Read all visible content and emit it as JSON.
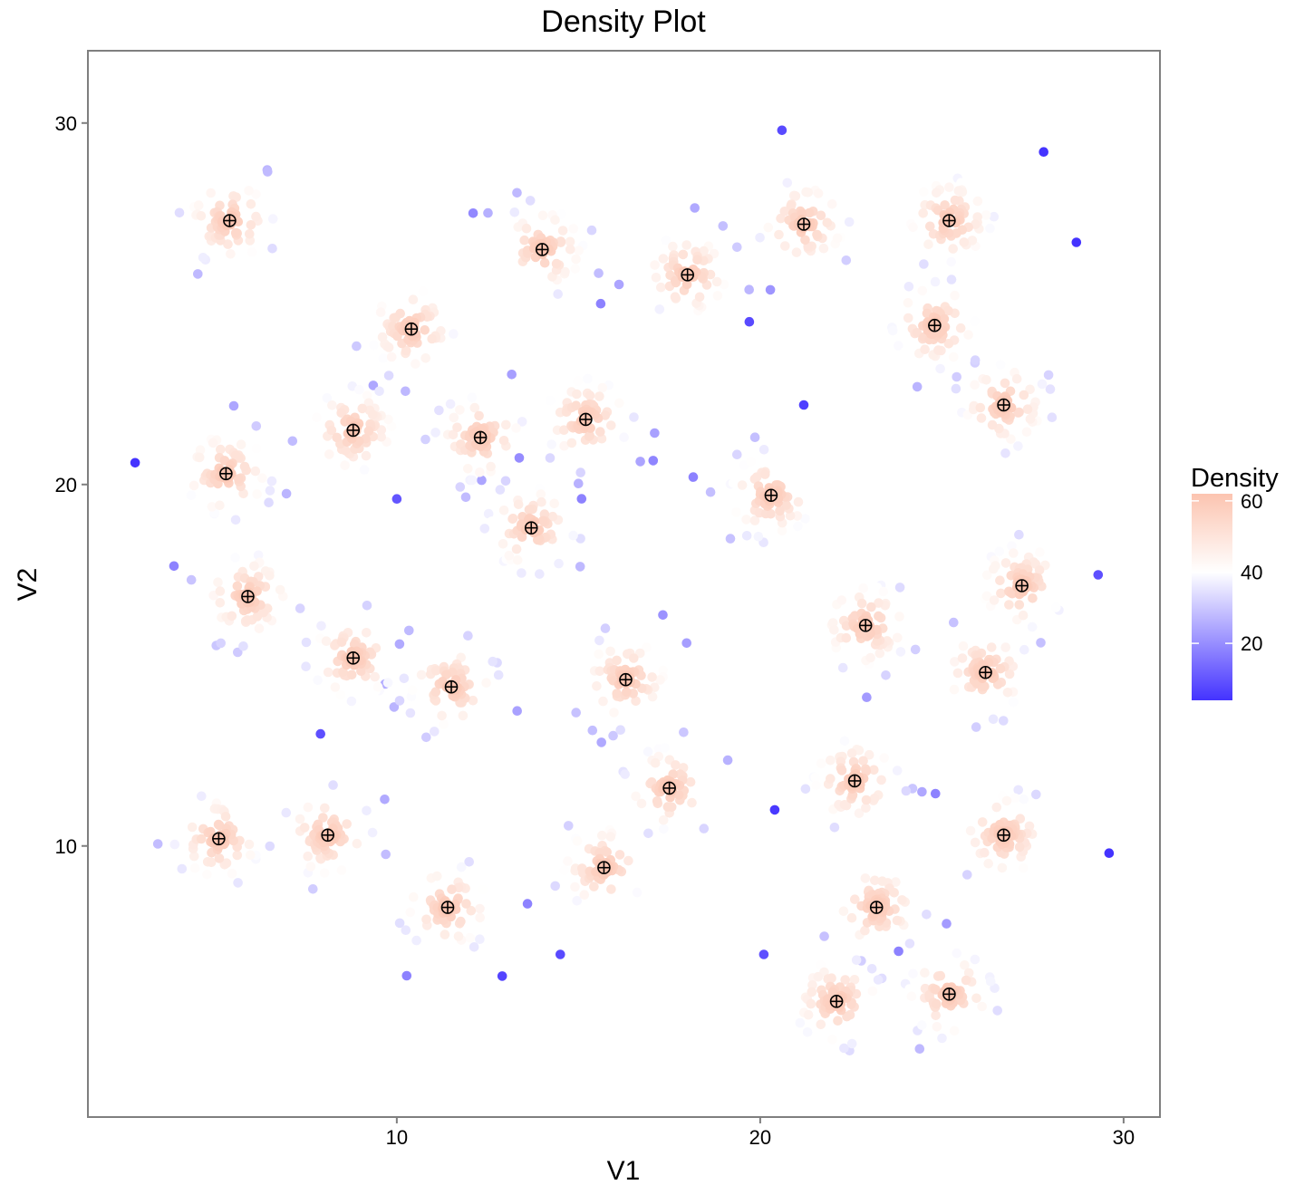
{
  "chart_data": {
    "type": "scatter",
    "title": "Density Plot",
    "xlabel": "V1",
    "ylabel": "V2",
    "xlim": [
      1.5,
      31.0
    ],
    "ylim": [
      2.5,
      32.0
    ],
    "x_ticks": [
      10,
      20,
      30
    ],
    "y_ticks": [
      10,
      20,
      30
    ],
    "grid": false,
    "legend": {
      "title": "Density",
      "position": "right",
      "ticks": [
        20,
        40,
        60
      ],
      "range": [
        4,
        62
      ],
      "colors": {
        "low": "#4433ff",
        "mid": "#ffffff",
        "high": "#fcc4b0"
      }
    },
    "centers_marker": "circled-plus",
    "cluster_centers": [
      {
        "x": 5.4,
        "y": 27.3
      },
      {
        "x": 14.0,
        "y": 26.5
      },
      {
        "x": 18.0,
        "y": 25.8
      },
      {
        "x": 21.2,
        "y": 27.2
      },
      {
        "x": 25.2,
        "y": 27.3
      },
      {
        "x": 10.4,
        "y": 24.3
      },
      {
        "x": 24.8,
        "y": 24.4
      },
      {
        "x": 8.8,
        "y": 21.5
      },
      {
        "x": 12.3,
        "y": 21.3
      },
      {
        "x": 15.2,
        "y": 21.8
      },
      {
        "x": 26.7,
        "y": 22.2
      },
      {
        "x": 5.3,
        "y": 20.3
      },
      {
        "x": 20.3,
        "y": 19.7
      },
      {
        "x": 13.7,
        "y": 18.8
      },
      {
        "x": 5.9,
        "y": 16.9
      },
      {
        "x": 27.2,
        "y": 17.2
      },
      {
        "x": 22.9,
        "y": 16.1
      },
      {
        "x": 8.8,
        "y": 15.2
      },
      {
        "x": 11.5,
        "y": 14.4
      },
      {
        "x": 16.3,
        "y": 14.6
      },
      {
        "x": 26.2,
        "y": 14.8
      },
      {
        "x": 17.5,
        "y": 11.6
      },
      {
        "x": 22.6,
        "y": 11.8
      },
      {
        "x": 5.1,
        "y": 10.2
      },
      {
        "x": 8.1,
        "y": 10.3
      },
      {
        "x": 26.7,
        "y": 10.3
      },
      {
        "x": 15.7,
        "y": 9.4
      },
      {
        "x": 11.4,
        "y": 8.3
      },
      {
        "x": 23.2,
        "y": 8.3
      },
      {
        "x": 22.1,
        "y": 5.7
      },
      {
        "x": 25.2,
        "y": 5.9
      }
    ],
    "isolated_points": [
      {
        "x": 2.8,
        "y": 20.6,
        "density": 4
      },
      {
        "x": 27.8,
        "y": 29.2,
        "density": 4
      },
      {
        "x": 28.7,
        "y": 26.7,
        "density": 3
      },
      {
        "x": 29.6,
        "y": 9.8,
        "density": 4
      },
      {
        "x": 20.4,
        "y": 11.0,
        "density": 5
      },
      {
        "x": 21.2,
        "y": 22.2,
        "density": 6
      },
      {
        "x": 19.7,
        "y": 24.5,
        "density": 8
      },
      {
        "x": 20.1,
        "y": 7.0,
        "density": 9
      },
      {
        "x": 14.5,
        "y": 7.0,
        "density": 8
      },
      {
        "x": 12.9,
        "y": 6.4,
        "density": 7
      },
      {
        "x": 7.9,
        "y": 13.1,
        "density": 9
      },
      {
        "x": 10.0,
        "y": 19.6,
        "density": 10
      },
      {
        "x": 20.6,
        "y": 29.8,
        "density": 8
      },
      {
        "x": 29.3,
        "y": 17.5,
        "density": 9
      }
    ]
  }
}
